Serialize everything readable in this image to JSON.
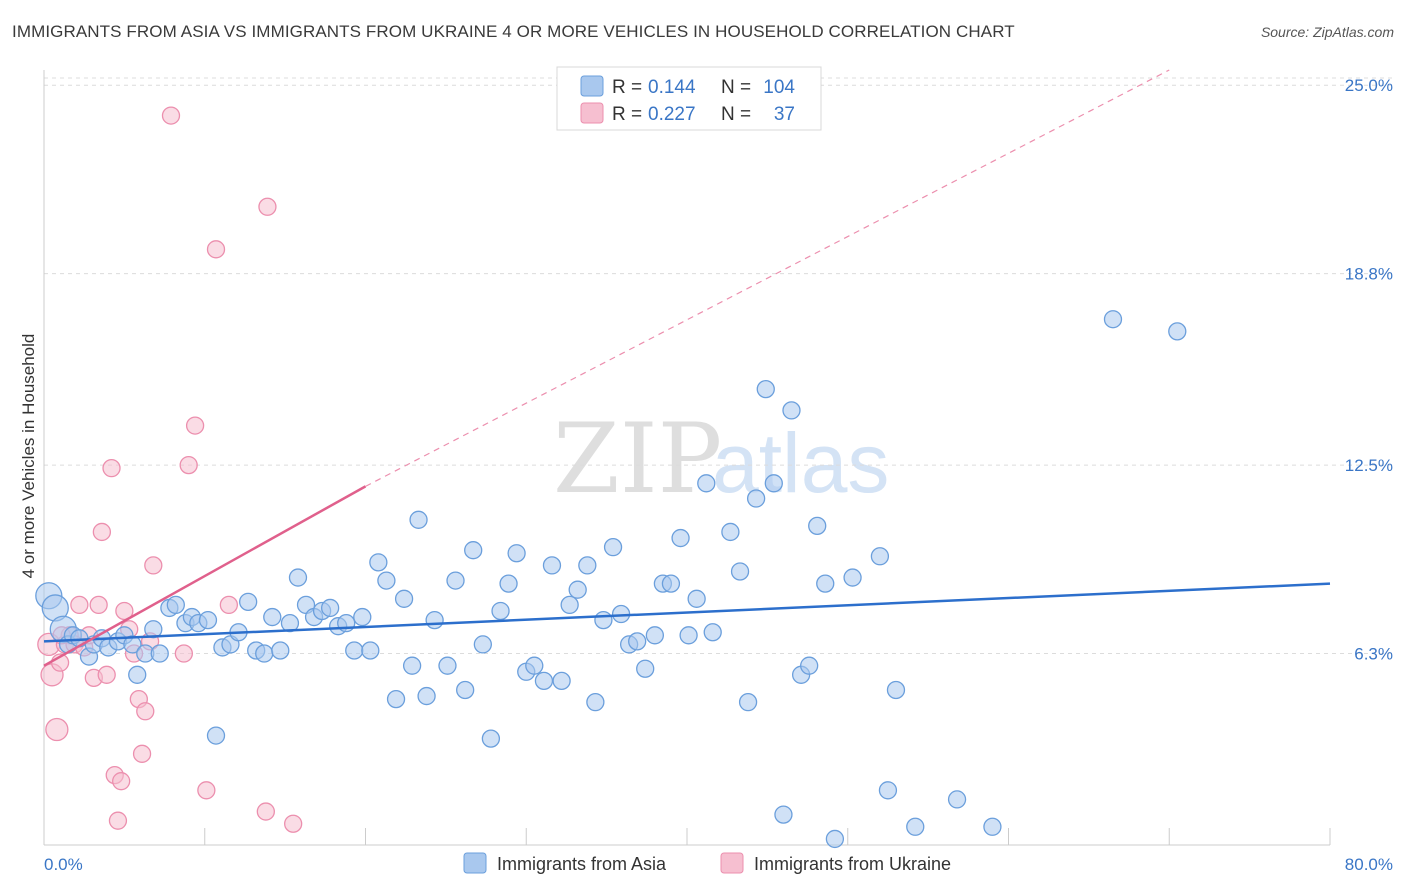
{
  "header": {
    "title": "IMMIGRANTS FROM ASIA VS IMMIGRANTS FROM UKRAINE 4 OR MORE VEHICLES IN HOUSEHOLD CORRELATION CHART",
    "source": "Source: ZipAtlas.com"
  },
  "watermark": {
    "zip": "ZIP",
    "atlas": "atlas"
  },
  "legend": {
    "rows": [
      {
        "r_label": "R =",
        "r_value": "0.144",
        "n_label": "N =",
        "n_value": "104"
      },
      {
        "r_label": "R =",
        "r_value": "0.227",
        "n_label": "N =",
        "n_value": "37"
      }
    ]
  },
  "colors": {
    "asia_fill": "#a9c8ee",
    "asia_stroke": "#6b9fdc",
    "asia_line": "#2c6fcc",
    "ukraine_fill": "#f6bfd0",
    "ukraine_stroke": "#ec8fae",
    "ukraine_line": "#e0608c",
    "grid": "#dcdcdc",
    "axis_text": "#3a76c6"
  },
  "chart_data": {
    "type": "scatter",
    "title": "IMMIGRANTS FROM ASIA VS IMMIGRANTS FROM UKRAINE 4 OR MORE VEHICLES IN HOUSEHOLD CORRELATION CHART",
    "xlabel": "",
    "ylabel": "4 or more Vehicles in Household",
    "xlim": [
      0,
      80
    ],
    "ylim": [
      0,
      25.5
    ],
    "x_tick_labels": [
      "0.0%",
      "80.0%"
    ],
    "y_ticks": [
      6.3,
      12.5,
      18.8,
      25.0
    ],
    "y_tick_labels": [
      "6.3%",
      "12.5%",
      "18.8%",
      "25.0%"
    ],
    "legend_position": "top-center",
    "series": [
      {
        "name": "Immigrants from Asia",
        "r": 0.144,
        "n": 104,
        "trend": {
          "x0": 0,
          "y0": 6.7,
          "x1": 80,
          "y1": 8.6
        },
        "points": [
          [
            0.3,
            8.2
          ],
          [
            0.7,
            7.8
          ],
          [
            1.2,
            7.1
          ],
          [
            1.5,
            6.6
          ],
          [
            1.8,
            6.9
          ],
          [
            2.2,
            6.8
          ],
          [
            2.8,
            6.2
          ],
          [
            3.1,
            6.6
          ],
          [
            3.6,
            6.8
          ],
          [
            4.0,
            6.5
          ],
          [
            4.6,
            6.7
          ],
          [
            5.0,
            6.9
          ],
          [
            5.5,
            6.6
          ],
          [
            5.8,
            5.6
          ],
          [
            6.3,
            6.3
          ],
          [
            6.8,
            7.1
          ],
          [
            7.2,
            6.3
          ],
          [
            7.8,
            7.8
          ],
          [
            8.2,
            7.9
          ],
          [
            8.8,
            7.3
          ],
          [
            9.2,
            7.5
          ],
          [
            9.6,
            7.3
          ],
          [
            10.2,
            7.4
          ],
          [
            10.7,
            3.6
          ],
          [
            11.1,
            6.5
          ],
          [
            11.6,
            6.6
          ],
          [
            12.1,
            7.0
          ],
          [
            12.7,
            8.0
          ],
          [
            13.2,
            6.4
          ],
          [
            13.7,
            6.3
          ],
          [
            14.2,
            7.5
          ],
          [
            14.7,
            6.4
          ],
          [
            15.3,
            7.3
          ],
          [
            15.8,
            8.8
          ],
          [
            16.3,
            7.9
          ],
          [
            16.8,
            7.5
          ],
          [
            17.3,
            7.7
          ],
          [
            17.8,
            7.8
          ],
          [
            18.3,
            7.2
          ],
          [
            18.8,
            7.3
          ],
          [
            19.3,
            6.4
          ],
          [
            19.8,
            7.5
          ],
          [
            20.3,
            6.4
          ],
          [
            20.8,
            9.3
          ],
          [
            21.3,
            8.7
          ],
          [
            21.9,
            4.8
          ],
          [
            22.4,
            8.1
          ],
          [
            22.9,
            5.9
          ],
          [
            23.3,
            10.7
          ],
          [
            23.8,
            4.9
          ],
          [
            24.3,
            7.4
          ],
          [
            25.1,
            5.9
          ],
          [
            25.6,
            8.7
          ],
          [
            26.2,
            5.1
          ],
          [
            26.7,
            9.7
          ],
          [
            27.3,
            6.6
          ],
          [
            27.8,
            3.5
          ],
          [
            28.4,
            7.7
          ],
          [
            28.9,
            8.6
          ],
          [
            29.4,
            9.6
          ],
          [
            30.0,
            5.7
          ],
          [
            30.5,
            5.9
          ],
          [
            31.1,
            5.4
          ],
          [
            31.6,
            9.2
          ],
          [
            32.2,
            5.4
          ],
          [
            32.7,
            7.9
          ],
          [
            33.2,
            8.4
          ],
          [
            33.8,
            9.2
          ],
          [
            34.3,
            4.7
          ],
          [
            34.8,
            7.4
          ],
          [
            35.4,
            9.8
          ],
          [
            35.9,
            7.6
          ],
          [
            36.4,
            6.6
          ],
          [
            36.9,
            6.7
          ],
          [
            37.4,
            5.8
          ],
          [
            38.0,
            6.9
          ],
          [
            38.5,
            8.6
          ],
          [
            39.0,
            8.6
          ],
          [
            39.6,
            10.1
          ],
          [
            40.1,
            6.9
          ],
          [
            40.6,
            8.1
          ],
          [
            41.2,
            11.9
          ],
          [
            41.6,
            7.0
          ],
          [
            42.7,
            10.3
          ],
          [
            43.3,
            9.0
          ],
          [
            43.8,
            4.7
          ],
          [
            44.3,
            11.4
          ],
          [
            44.9,
            15.0
          ],
          [
            45.4,
            11.9
          ],
          [
            46.0,
            1.0
          ],
          [
            46.5,
            14.3
          ],
          [
            47.1,
            5.6
          ],
          [
            47.6,
            5.9
          ],
          [
            48.1,
            10.5
          ],
          [
            48.6,
            8.6
          ],
          [
            49.2,
            0.2
          ],
          [
            50.3,
            8.8
          ],
          [
            52.0,
            9.5
          ],
          [
            52.5,
            1.8
          ],
          [
            53.0,
            5.1
          ],
          [
            54.2,
            0.6
          ],
          [
            56.8,
            1.5
          ],
          [
            59.0,
            0.6
          ],
          [
            66.5,
            17.3
          ],
          [
            70.5,
            16.9
          ]
        ]
      },
      {
        "name": "Immigrants from Ukraine",
        "r": 0.227,
        "n": 37,
        "trend": {
          "x0": 0,
          "y0": 5.9,
          "x1": 20,
          "y1": 11.8,
          "dashed_to": [
            70,
            25.5
          ]
        },
        "points": [
          [
            0.3,
            6.6
          ],
          [
            0.5,
            5.6
          ],
          [
            0.8,
            3.8
          ],
          [
            1.0,
            6.0
          ],
          [
            1.3,
            6.6
          ],
          [
            1.6,
            6.9
          ],
          [
            1.9,
            6.6
          ],
          [
            2.2,
            7.9
          ],
          [
            2.5,
            6.5
          ],
          [
            2.8,
            6.9
          ],
          [
            3.1,
            5.5
          ],
          [
            3.4,
            7.9
          ],
          [
            3.6,
            10.3
          ],
          [
            3.9,
            5.6
          ],
          [
            4.2,
            12.4
          ],
          [
            4.4,
            2.3
          ],
          [
            4.6,
            0.8
          ],
          [
            4.8,
            2.1
          ],
          [
            5.0,
            7.7
          ],
          [
            5.3,
            7.1
          ],
          [
            5.6,
            6.3
          ],
          [
            5.9,
            4.8
          ],
          [
            6.1,
            3.0
          ],
          [
            6.3,
            4.4
          ],
          [
            6.6,
            6.7
          ],
          [
            6.8,
            9.2
          ],
          [
            7.9,
            24.0
          ],
          [
            8.7,
            6.3
          ],
          [
            9.0,
            12.5
          ],
          [
            9.4,
            13.8
          ],
          [
            10.1,
            1.8
          ],
          [
            10.7,
            19.6
          ],
          [
            11.5,
            7.9
          ],
          [
            13.8,
            1.1
          ],
          [
            13.9,
            21.0
          ],
          [
            15.5,
            0.7
          ],
          [
            1.1,
            6.9
          ]
        ]
      }
    ]
  },
  "bottom_legend": {
    "items": [
      {
        "label": "Immigrants from Asia"
      },
      {
        "label": "Immigrants from Ukraine"
      }
    ]
  }
}
